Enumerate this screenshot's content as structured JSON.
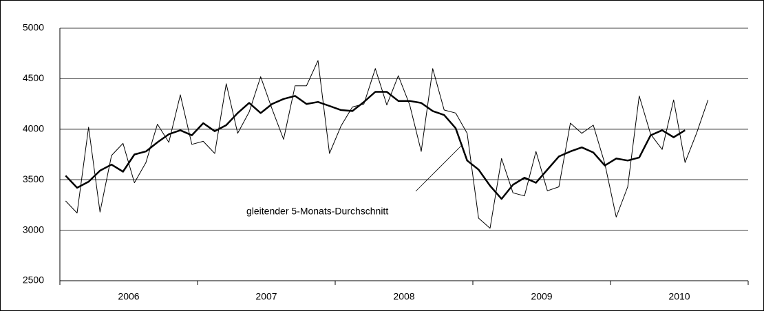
{
  "chart_data": {
    "type": "line",
    "annotation": "gleitender 5-Monats-Durchschnitt",
    "categories": [
      null,
      null,
      null,
      null,
      null,
      null,
      "2006",
      null,
      null,
      null,
      null,
      null,
      null,
      null,
      null,
      null,
      null,
      null,
      "2007",
      null,
      null,
      null,
      null,
      null,
      null,
      null,
      null,
      null,
      null,
      null,
      "2008",
      null,
      null,
      null,
      null,
      null,
      null,
      null,
      null,
      null,
      null,
      null,
      "2009",
      null,
      null,
      null,
      null,
      null,
      null,
      null,
      null,
      null,
      null,
      null,
      "2010",
      null,
      null
    ],
    "series": [
      {
        "color": "#000000",
        "width": 1,
        "values": [
          3290,
          3170,
          4020,
          3180,
          3740,
          3860,
          3470,
          3670,
          4050,
          3870,
          4340,
          3850,
          3880,
          3760,
          4450,
          3960,
          4170,
          4520,
          4200,
          3900,
          4430,
          4430,
          4680,
          3760,
          4030,
          4220,
          4250,
          4600,
          4240,
          4530,
          4240,
          3780,
          4600,
          4190,
          4160,
          3960,
          3120,
          3020,
          3710,
          3370,
          3340,
          3780,
          3390,
          3430,
          4060,
          3960,
          4040,
          3660,
          3130,
          3430,
          4330,
          3950,
          3800,
          4290,
          3670,
          3960,
          4290
        ]
      },
      {
        "color": "#000000",
        "width": 2.5,
        "values": [
          3540,
          3420,
          3480,
          3590,
          3650,
          3580,
          3750,
          3780,
          3870,
          3950,
          3990,
          3940,
          4060,
          3980,
          4040,
          4160,
          4260,
          4160,
          4250,
          4300,
          4330,
          4250,
          4270,
          4230,
          4190,
          4180,
          4270,
          4370,
          4370,
          4280,
          4280,
          4260,
          4180,
          4140,
          4010,
          3690,
          3600,
          3440,
          3310,
          3450,
          3520,
          3470,
          3600,
          3730,
          3780,
          3820,
          3770,
          3640,
          3710,
          3690,
          3720,
          3940,
          3990,
          3920,
          3990,
          null,
          null
        ]
      }
    ],
    "ylim": [
      2500,
      5000
    ],
    "yticks": [
      2500,
      3000,
      3500,
      4000,
      4500,
      5000
    ],
    "grid": true
  }
}
